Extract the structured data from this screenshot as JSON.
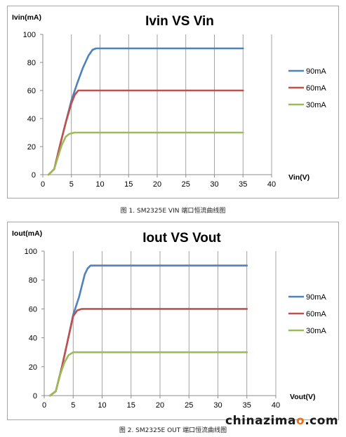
{
  "chart_data": [
    {
      "type": "line",
      "title": "Ivin VS  Vin",
      "ylabel": "Ivin(mA)",
      "xlabel": "Vin(V)",
      "xlim": [
        0,
        40
      ],
      "ylim": [
        0,
        100
      ],
      "xticks": [
        "0",
        "5",
        "10",
        "15",
        "20",
        "25",
        "30",
        "35",
        "40"
      ],
      "yticks": [
        "0",
        "20",
        "40",
        "60",
        "80",
        "100"
      ],
      "grid": "vertical",
      "legend": "right",
      "series": [
        {
          "name": "90mA",
          "color": "#4f81bd",
          "x": [
            1,
            2,
            3,
            4,
            5,
            6,
            7,
            8,
            8.7,
            9.3,
            10,
            15,
            20,
            25,
            30,
            35
          ],
          "y": [
            0,
            4,
            21,
            37,
            53,
            65,
            76,
            85,
            89,
            90,
            90,
            90,
            90,
            90,
            90,
            90
          ]
        },
        {
          "name": "60mA",
          "color": "#c0504d",
          "x": [
            1,
            2,
            3,
            4,
            5,
            5.6,
            6.2,
            7,
            10,
            15,
            20,
            25,
            30,
            35
          ],
          "y": [
            0,
            4,
            21,
            37,
            51,
            57,
            60,
            60,
            60,
            60,
            60,
            60,
            60,
            60
          ]
        },
        {
          "name": "30mA",
          "color": "#9bbb59",
          "x": [
            1,
            2,
            2.6,
            3.3,
            4,
            4.6,
            5.5,
            7,
            10,
            15,
            20,
            25,
            30,
            35
          ],
          "y": [
            0,
            4,
            12,
            21,
            27,
            29,
            30,
            30,
            30,
            30,
            30,
            30,
            30,
            30
          ]
        }
      ]
    },
    {
      "type": "line",
      "title": "Iout VS  Vout",
      "ylabel": "Iout(mA)",
      "xlabel": "Vout(V)",
      "xlim": [
        0,
        40
      ],
      "ylim": [
        0,
        100
      ],
      "xticks": [
        "0",
        "5",
        "10",
        "15",
        "20",
        "25",
        "30",
        "35",
        "40"
      ],
      "yticks": [
        "0",
        "20",
        "40",
        "60",
        "80",
        "100"
      ],
      "grid": "vertical",
      "legend": "right",
      "series": [
        {
          "name": "90mA",
          "color": "#4f81bd",
          "x": [
            1,
            2,
            3,
            4,
            5,
            6,
            7,
            7.5,
            8,
            8.5,
            10,
            15,
            20,
            25,
            30,
            35
          ],
          "y": [
            0,
            3,
            19,
            37,
            56,
            68,
            84,
            88,
            90,
            90,
            90,
            90,
            90,
            90,
            90,
            90
          ]
        },
        {
          "name": "60mA",
          "color": "#c0504d",
          "x": [
            1,
            2,
            3,
            4,
            5,
            5.7,
            6.5,
            7,
            10,
            15,
            20,
            25,
            30,
            35
          ],
          "y": [
            0,
            3,
            19,
            37,
            55,
            59,
            60,
            60,
            60,
            60,
            60,
            60,
            60,
            60
          ]
        },
        {
          "name": "30mA",
          "color": "#9bbb59",
          "x": [
            1,
            2,
            2.8,
            3.5,
            4.2,
            5,
            6,
            7,
            10,
            15,
            20,
            25,
            30,
            35
          ],
          "y": [
            0,
            3,
            15,
            23,
            28,
            30,
            30,
            30,
            30,
            30,
            30,
            30,
            30,
            30
          ]
        }
      ]
    }
  ],
  "captions": [
    "图 1. SM2325E VIN 端口恒流曲线图",
    "图 2. SM2325E OUT 端口恒流曲线图"
  ],
  "watermark": {
    "text_pre": "chinazima",
    "text_o": "o",
    "text_post": ".com"
  }
}
